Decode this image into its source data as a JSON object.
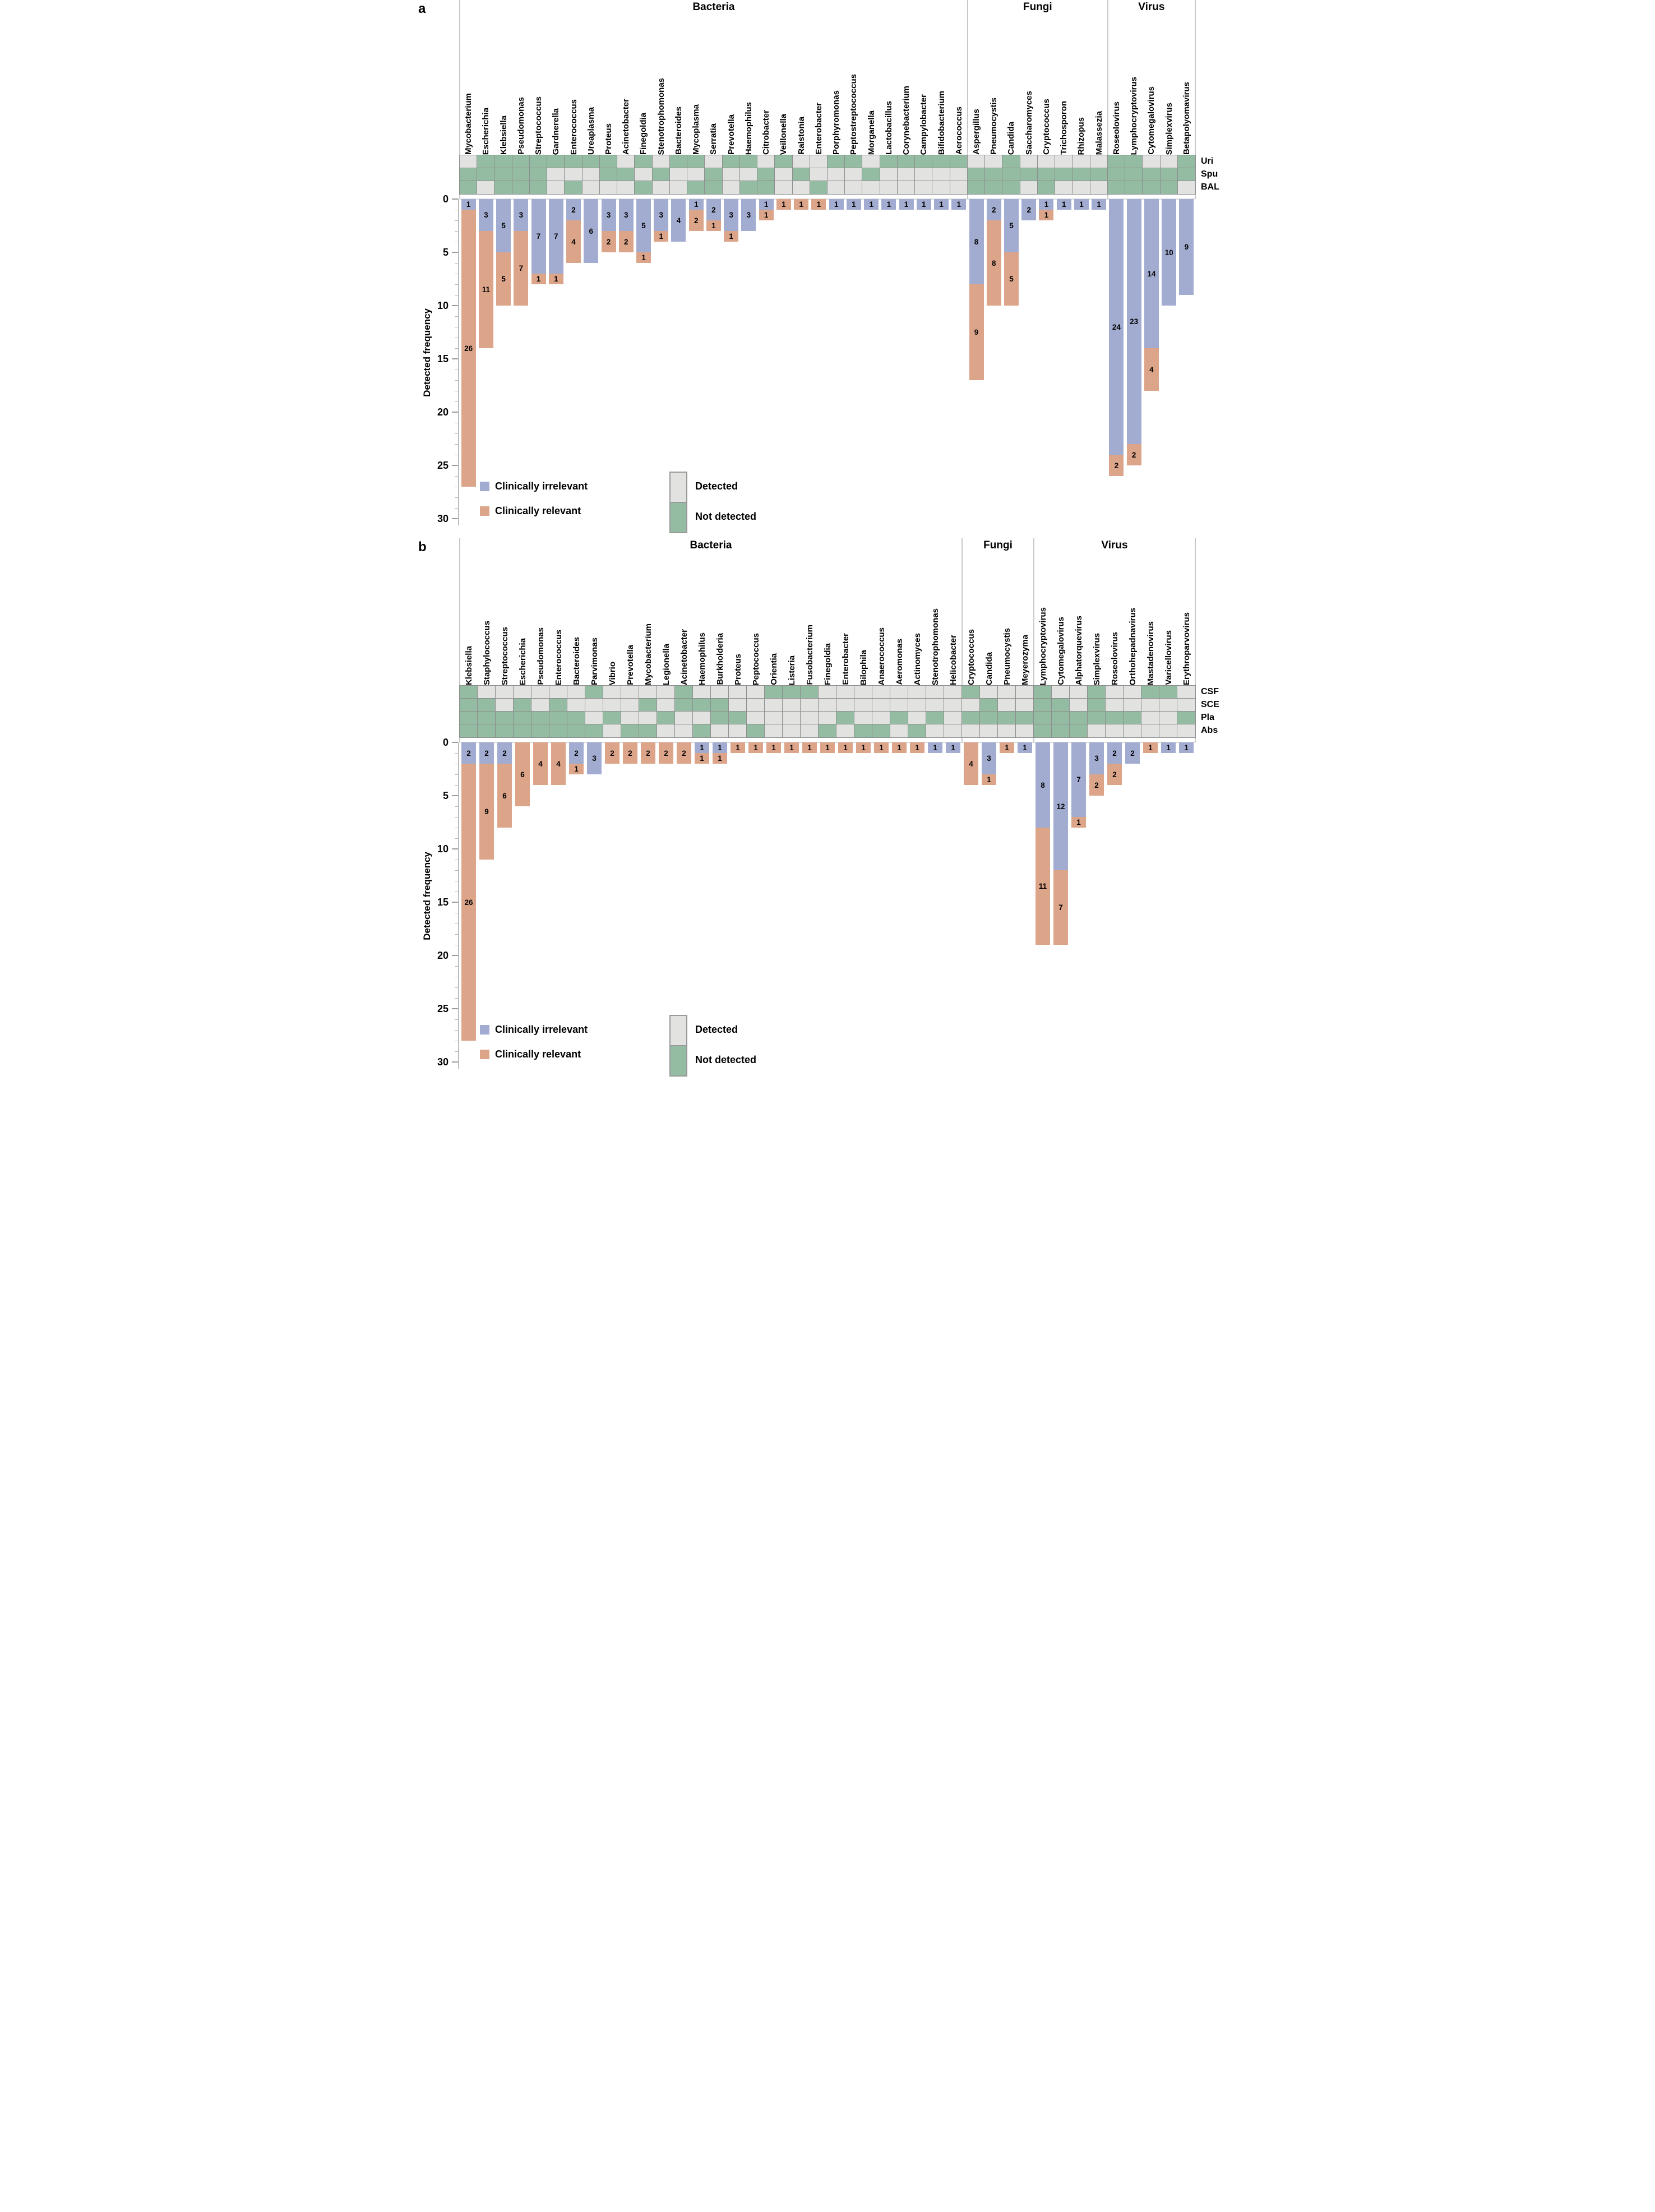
{
  "legend": {
    "irrelevant_label": "Clinically irrelevant",
    "relevant_label": "Clinically relevant",
    "detected_label": "Detected",
    "not_detected_label": "Not detected"
  },
  "colors": {
    "irrelevant": "#a2acd0",
    "relevant": "#dca489",
    "detected": "#e2e2e1",
    "not_detected": "#94bca3",
    "grid": "#8e8e8e",
    "divider": "#c9c9c9",
    "axis": "#bdbdbd",
    "zero_line": "#dadada"
  },
  "chart_data": [
    {
      "type": "bar",
      "stacked": true,
      "panel_label": "a",
      "title_groups": [
        {
          "label": "Bacteria",
          "span": 29
        },
        {
          "label": "Fungi",
          "span": 8
        },
        {
          "label": "Virus",
          "span": 5
        }
      ],
      "categories": [
        "Mycobacterium",
        "Escherichia",
        "Klebsiella",
        "Pseudomonas",
        "Streptococcus",
        "Gardnerella",
        "Enterococcus",
        "Ureaplasma",
        "Proteus",
        "Acinetobacter",
        "Finegoldia",
        "Stenotrophomonas",
        "Bacteroides",
        "Mycoplasma",
        "Serratia",
        "Prevotella",
        "Haemophilus",
        "Citrobacter",
        "Veillonella",
        "Ralstonia",
        "Enterobacter",
        "Porphyromonas",
        "Peptostreptococcus",
        "Morganella",
        "Lactobacillus",
        "Corynebacterium",
        "Campylobacter",
        "Bifidobacterium",
        "Aerococcus",
        "Aspergillus",
        "Pneumocystis",
        "Candida",
        "Saccharomyces",
        "Cryptococcus",
        "Trichosporon",
        "Rhizopus",
        "Malassezia",
        "Roseolovirus",
        "Lymphocryptovirus",
        "Cytomegalovirus",
        "Simplexvirus",
        "Betapolyomavirus"
      ],
      "series": [
        {
          "name": "Clinically irrelevant",
          "color_key": "irrelevant",
          "values": [
            1,
            3,
            5,
            3,
            7,
            7,
            2,
            6,
            3,
            3,
            5,
            3,
            4,
            1,
            2,
            3,
            3,
            1,
            0,
            0,
            0,
            1,
            1,
            1,
            1,
            1,
            1,
            1,
            1,
            8,
            2,
            5,
            2,
            1,
            1,
            1,
            1,
            24,
            23,
            14,
            10,
            9
          ]
        },
        {
          "name": "Clinically relevant",
          "color_key": "relevant",
          "values": [
            26,
            11,
            5,
            7,
            1,
            1,
            4,
            0,
            2,
            2,
            1,
            1,
            0,
            2,
            1,
            1,
            0,
            1,
            1,
            1,
            1,
            0,
            0,
            0,
            0,
            0,
            0,
            0,
            0,
            9,
            8,
            5,
            0,
            1,
            0,
            0,
            0,
            2,
            2,
            4,
            0,
            0
          ]
        }
      ],
      "heatmap": {
        "row_labels": [
          "Uri",
          "Spu",
          "BAL"
        ],
        "cells": [
          "DNNNNNNNNDNDNNDNNDNDDNNDNNNNNDDNDDDDDNNDDN",
          "NNNNNDDDNNDNDDNDDNDNDDDNDDDDDNNNNNNNNNNNNN",
          "NDNNNDNDDDNDDNNDNNDDNDDDDDDDDNNNDNDDDNNNND"
        ]
      },
      "ylabel": "Detected frequency",
      "ylim": [
        0,
        30
      ],
      "yticks": [
        0,
        5,
        10,
        15,
        20,
        25,
        30
      ],
      "y_inverted": true,
      "grid": false,
      "legend_position": "bottom-left-inside"
    },
    {
      "type": "bar",
      "stacked": true,
      "panel_label": "b",
      "title_groups": [
        {
          "label": "Bacteria",
          "span": 28
        },
        {
          "label": "Fungi",
          "span": 4
        },
        {
          "label": "Virus",
          "span": 9
        }
      ],
      "categories": [
        "Klebsiella",
        "Staphylococcus",
        "Streptococcus",
        "Escherichia",
        "Pseudomonas",
        "Enterococcus",
        "Bacteroides",
        "Parvimonas",
        "Vibrio",
        "Prevotella",
        "Mycobacterium",
        "Legionella",
        "Acinetobacter",
        "Haemophilus",
        "Burkholderia",
        "Proteus",
        "Peptococcus",
        "Orientia",
        "Listeria",
        "Fusobacterium",
        "Finegoldia",
        "Enterobacter",
        "Bilophila",
        "Anaerococcus",
        "Aeromonas",
        "Actinomyces",
        "Stenotrophomonas",
        "Helicobacter",
        "Cryptococcus",
        "Candida",
        "Pneumocystis",
        "Meyerozyma",
        "Lymphocryptovirus",
        "Cytomegalovirus",
        "Alphatorquevirus",
        "Simplexvirus",
        "Roseolovirus",
        "Orthohepadnavirus",
        "Mastadenovirus",
        "Varicellovirus",
        "Erythroparvovirus"
      ],
      "series": [
        {
          "name": "Clinically irrelevant",
          "color_key": "irrelevant",
          "values": [
            2,
            2,
            2,
            0,
            0,
            0,
            2,
            3,
            0,
            0,
            0,
            0,
            0,
            1,
            1,
            0,
            0,
            0,
            0,
            0,
            0,
            0,
            0,
            0,
            0,
            0,
            1,
            1,
            0,
            3,
            0,
            1,
            8,
            12,
            7,
            3,
            2,
            2,
            0,
            1,
            1
          ]
        },
        {
          "name": "Clinically relevant",
          "color_key": "relevant",
          "values": [
            26,
            9,
            6,
            6,
            4,
            4,
            1,
            0,
            2,
            2,
            2,
            2,
            2,
            1,
            1,
            1,
            1,
            1,
            1,
            1,
            1,
            1,
            1,
            1,
            1,
            1,
            0,
            0,
            4,
            1,
            1,
            0,
            11,
            7,
            1,
            2,
            2,
            0,
            1,
            0,
            0
          ]
        }
      ],
      "heatmap": {
        "row_labels": [
          "CSF",
          "SCE",
          "Pla",
          "Abs"
        ],
        "cells": [
          "NDDDDDDNDDDDNDDDDNNNDDDDDDDDNDDDNDDNDDNND",
          "NNDNDNDDDDNDNNNDDDDDDDDDDDDDDNDDNNDNDDDDD",
          "NNNNNNNDNDDNDDNNDDDDDNDDNDNDNNNNNNNNNNDDN",
          "NNNNNNNNDNNDDNDDNDDDNDNNDNDDDDDDNNNDDDDDD"
        ]
      },
      "ylabel": "Detected frequency",
      "ylim": [
        0,
        30
      ],
      "yticks": [
        0,
        5,
        10,
        15,
        20,
        25,
        30
      ],
      "y_inverted": true,
      "grid": false,
      "legend_position": "bottom-left-inside"
    }
  ]
}
